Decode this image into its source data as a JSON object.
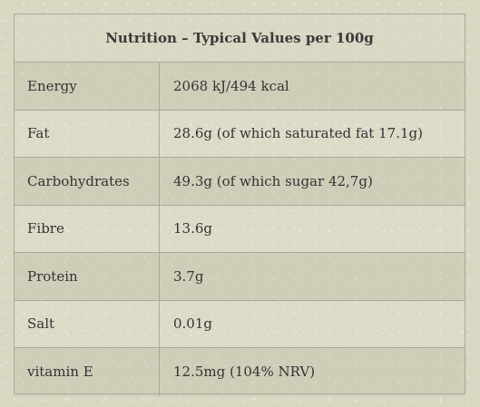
{
  "table": {
    "title": "Nutrition – Typical Values per 100g",
    "rows": [
      {
        "label": "Energy",
        "value": "2068 kJ/494 kcal"
      },
      {
        "label": "Fat",
        "value": "28.6g (of which saturated fat 17.1g)"
      },
      {
        "label": "Carbohydrates",
        "value": "49.3g (of which sugar 42,7g)"
      },
      {
        "label": "Fibre",
        "value": "13.6g"
      },
      {
        "label": "Protein",
        "value": "3.7g"
      },
      {
        "label": "Salt",
        "value": "0.01g"
      },
      {
        "label": "vitamin E",
        "value": "12.5mg (104% NRV)"
      }
    ]
  },
  "colors": {
    "background": "#d9d6c2",
    "border": "#aaa89a",
    "text": "#333333"
  }
}
